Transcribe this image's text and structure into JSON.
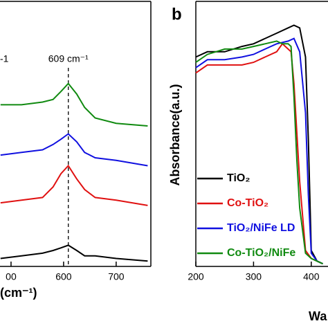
{
  "chart_data": [
    {
      "type": "line",
      "xlabel": "(cm⁻¹)",
      "annotations": [
        "-1"
      ],
      "peak": {
        "x": 609,
        "label": "609 cm⁻¹"
      },
      "xlim": [
        479,
        766
      ],
      "ylim": [
        0,
        100
      ],
      "xticks": [
        {
          "value": 500,
          "label": "00"
        },
        600,
        700
      ],
      "series": [
        {
          "color": "#108a10",
          "x": [
            480,
            520,
            560,
            580,
            595,
            609,
            625,
            640,
            660,
            700,
            760
          ],
          "values": [
            61,
            61,
            62,
            63,
            66,
            69,
            65,
            60,
            56,
            54,
            53
          ]
        },
        {
          "color": "#1010e0",
          "x": [
            480,
            520,
            560,
            580,
            595,
            609,
            625,
            640,
            660,
            700,
            760
          ],
          "values": [
            42,
            43,
            44,
            46,
            48,
            50,
            47,
            43,
            41,
            40,
            38
          ]
        },
        {
          "color": "#e01010",
          "x": [
            480,
            520,
            560,
            580,
            595,
            609,
            625,
            640,
            660,
            700,
            760
          ],
          "values": [
            24,
            25,
            26,
            30,
            35,
            38,
            33,
            29,
            26,
            25,
            23
          ]
        },
        {
          "color": "#000000",
          "x": [
            480,
            520,
            560,
            580,
            595,
            609,
            625,
            640,
            660,
            700,
            760
          ],
          "values": [
            3,
            4,
            5,
            6,
            7,
            8,
            6,
            4,
            4,
            3,
            2
          ]
        }
      ]
    },
    {
      "type": "line",
      "panel": "b",
      "xlabel": "Wa",
      "ylabel": "Absorbance(a.u.)",
      "xlim": [
        200,
        429
      ],
      "ylim": [
        0,
        100
      ],
      "xticks": [
        200,
        300,
        400
      ],
      "series": [
        {
          "name": "TiO₂",
          "color": "#000000",
          "x": [
            200,
            220,
            250,
            280,
            300,
            320,
            340,
            360,
            370,
            380,
            390,
            395,
            400,
            410,
            420
          ],
          "values": [
            79,
            81,
            81,
            83,
            84,
            86,
            88,
            90,
            91,
            90,
            79,
            48,
            6,
            2,
            1
          ]
        },
        {
          "name": "Co-TiO₂",
          "color": "#e01010",
          "x": [
            200,
            220,
            250,
            280,
            300,
            320,
            340,
            350,
            360,
            365,
            370,
            380,
            390,
            400,
            420
          ],
          "values": [
            73,
            76,
            76,
            76,
            77,
            79,
            81,
            84,
            82,
            81,
            69,
            32,
            6,
            3,
            1
          ]
        },
        {
          "name": "TiO₂/NiFe LD",
          "color": "#1010e0",
          "x": [
            200,
            220,
            250,
            280,
            300,
            320,
            340,
            360,
            370,
            380,
            390,
            395,
            400,
            410,
            420
          ],
          "values": [
            75,
            78,
            78,
            79,
            80,
            82,
            84,
            85,
            86,
            81,
            58,
            27,
            5,
            2,
            1
          ]
        },
        {
          "name": "Co-TiO₂/NiFe",
          "color": "#108a10",
          "x": [
            200,
            220,
            250,
            280,
            300,
            320,
            340,
            350,
            360,
            365,
            370,
            375,
            380,
            390,
            400,
            420
          ],
          "values": [
            77,
            80,
            82,
            82,
            83,
            84,
            85,
            84,
            84,
            83,
            64,
            40,
            22,
            5,
            3,
            1
          ]
        }
      ]
    }
  ]
}
